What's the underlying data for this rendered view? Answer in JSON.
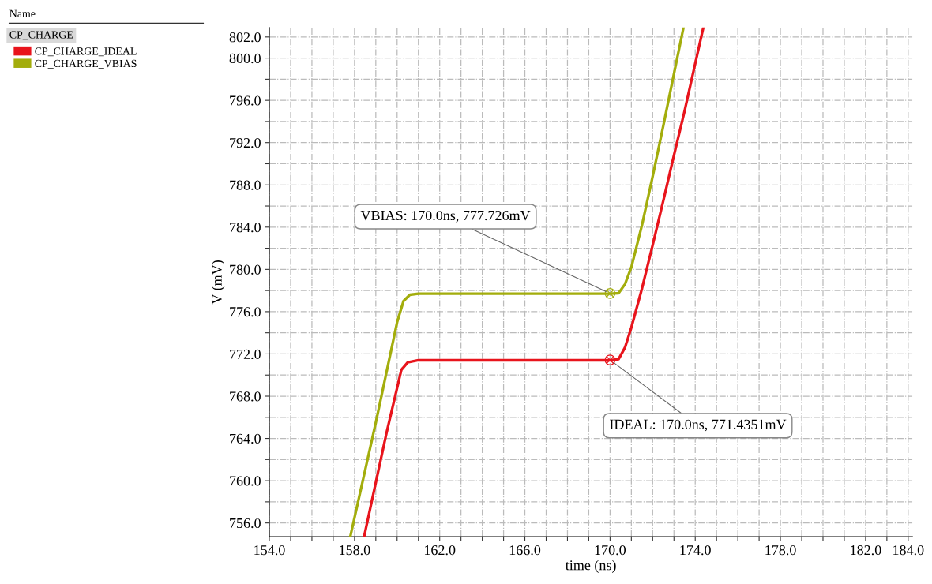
{
  "chart_data": {
    "type": "line",
    "xlabel": "time (ns)",
    "ylabel": "V (mV)",
    "legend_title": "CP_CHARGE",
    "legend": "left",
    "grid": true,
    "line_style": "solid",
    "xlim": [
      154,
      184.2
    ],
    "ylim": [
      754.7,
      802.9
    ],
    "xticks": [
      {
        "value": 154,
        "label": "154.0"
      },
      {
        "value": 155,
        "label": null
      },
      {
        "value": 156,
        "label": null
      },
      {
        "value": 157,
        "label": null
      },
      {
        "value": 158,
        "label": "158.0"
      },
      {
        "value": 159,
        "label": null
      },
      {
        "value": 160,
        "label": null
      },
      {
        "value": 161,
        "label": null
      },
      {
        "value": 162,
        "label": "162.0"
      },
      {
        "value": 163,
        "label": null
      },
      {
        "value": 164,
        "label": null
      },
      {
        "value": 165,
        "label": null
      },
      {
        "value": 166,
        "label": "166.0"
      },
      {
        "value": 167,
        "label": null
      },
      {
        "value": 168,
        "label": null
      },
      {
        "value": 169,
        "label": null
      },
      {
        "value": 170,
        "label": "170.0"
      },
      {
        "value": 171,
        "label": null
      },
      {
        "value": 172,
        "label": null
      },
      {
        "value": 173,
        "label": null
      },
      {
        "value": 174,
        "label": "174.0"
      },
      {
        "value": 175,
        "label": null
      },
      {
        "value": 176,
        "label": null
      },
      {
        "value": 177,
        "label": null
      },
      {
        "value": 178,
        "label": "178.0"
      },
      {
        "value": 179,
        "label": null
      },
      {
        "value": 180,
        "label": null
      },
      {
        "value": 181,
        "label": null
      },
      {
        "value": 182,
        "label": "182.0"
      },
      {
        "value": 183,
        "label": null
      },
      {
        "value": 184,
        "label": "184.0"
      }
    ],
    "yticks": [
      {
        "value": 756,
        "label": "756.0"
      },
      {
        "value": 758,
        "label": null
      },
      {
        "value": 760,
        "label": "760.0"
      },
      {
        "value": 762,
        "label": null
      },
      {
        "value": 764,
        "label": "764.0"
      },
      {
        "value": 766,
        "label": null
      },
      {
        "value": 768,
        "label": "768.0"
      },
      {
        "value": 770,
        "label": null
      },
      {
        "value": 772,
        "label": "772.0"
      },
      {
        "value": 774,
        "label": null
      },
      {
        "value": 776,
        "label": "776.0"
      },
      {
        "value": 778,
        "label": null
      },
      {
        "value": 780,
        "label": "780.0"
      },
      {
        "value": 782,
        "label": null
      },
      {
        "value": 784,
        "label": "784.0"
      },
      {
        "value": 786,
        "label": null
      },
      {
        "value": 788,
        "label": "788.0"
      },
      {
        "value": 790,
        "label": null
      },
      {
        "value": 792,
        "label": "792.0"
      },
      {
        "value": 794,
        "label": null
      },
      {
        "value": 796,
        "label": "796.0"
      },
      {
        "value": 798,
        "label": null
      },
      {
        "value": 800,
        "label": "800.0"
      },
      {
        "value": 802,
        "label": "802.0"
      }
    ],
    "annotations": [
      "Name",
      {
        "text": "VBIAS: 170.0ns, 777.726mV",
        "x": 170.0,
        "y": 777.726
      },
      {
        "text": "IDEAL: 170.0ns, 771.4351mV",
        "x": 170.0,
        "y": 771.4351
      }
    ],
    "series": [
      {
        "name": "CP_CHARGE_IDEAL",
        "color": "#e8141c",
        "x": [
          158.45,
          159.5,
          160.2,
          160.5,
          161.0,
          170.0,
          170.4,
          170.7,
          171.0,
          171.5,
          172.0,
          172.5,
          173.0,
          173.5,
          174.0,
          174.38
        ],
        "values": [
          754.7,
          764.5,
          770.5,
          771.2,
          771.4,
          771.4,
          771.5,
          772.6,
          774.5,
          778.2,
          782.3,
          786.5,
          790.8,
          795.0,
          799.5,
          802.9
        ]
      },
      {
        "name": "CP_CHARGE_VBIAS",
        "color": "#a3ad0c",
        "x": [
          157.8,
          159.0,
          160.0,
          160.3,
          160.6,
          161.0,
          170.0,
          170.4,
          170.7,
          171.0,
          171.5,
          172.0,
          172.5,
          173.0,
          173.45
        ],
        "values": [
          754.7,
          765.5,
          775.0,
          777.0,
          777.6,
          777.7,
          777.7,
          777.75,
          778.6,
          780.2,
          784.2,
          788.8,
          793.6,
          798.5,
          802.9
        ]
      }
    ]
  }
}
